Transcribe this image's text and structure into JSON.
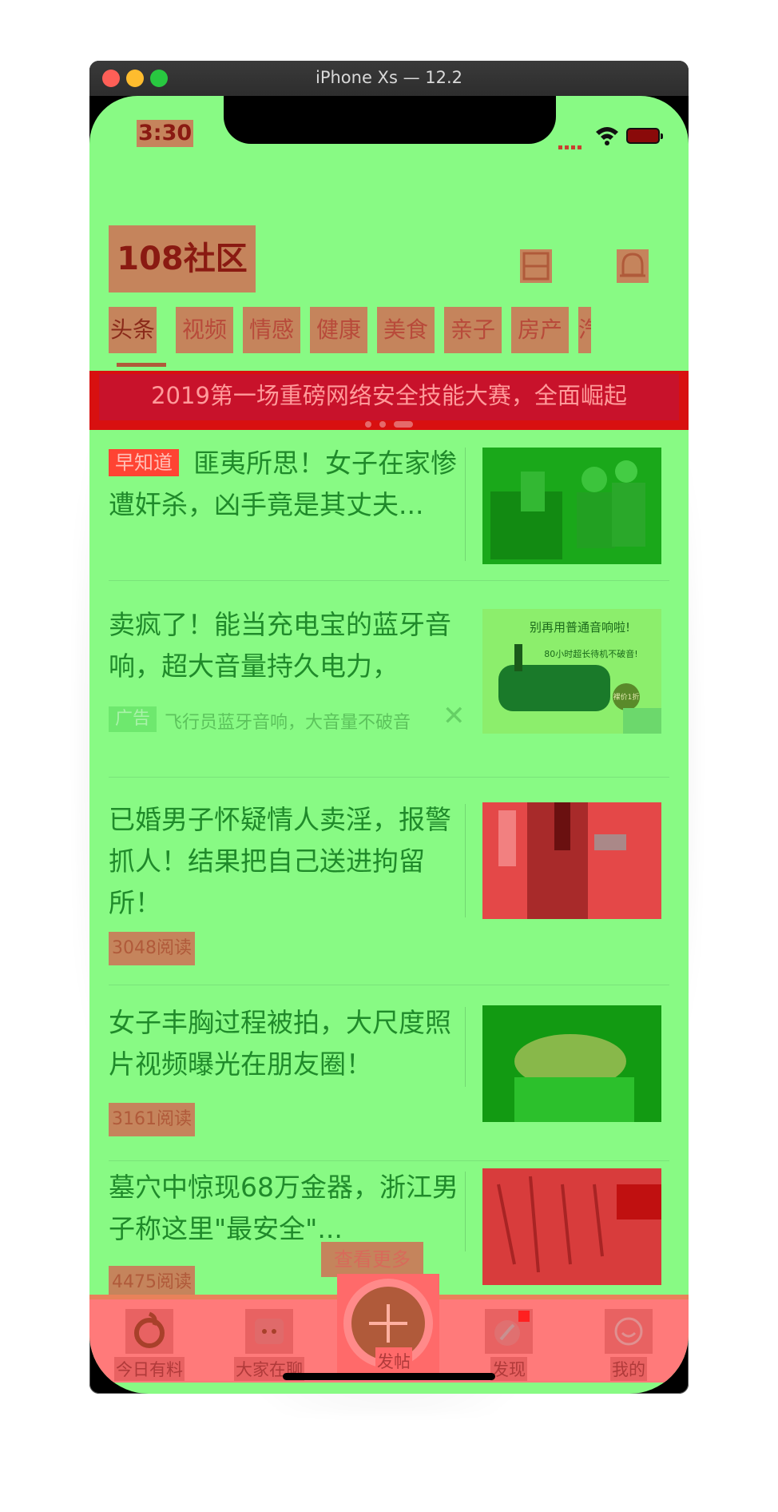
{
  "window": {
    "title": "iPhone Xs — 12.2"
  },
  "status": {
    "time": "3:30"
  },
  "header": {
    "logo": "108社区"
  },
  "categories": [
    "头条",
    "视频",
    "情感",
    "健康",
    "美食",
    "亲子",
    "房产",
    "汽"
  ],
  "banner": {
    "text": "2019第一场重磅网络安全技能大赛，全面崛起"
  },
  "feed": [
    {
      "tag": "早知道",
      "title": "匪夷所思！女子在家惨遭奸杀，凶手竟是其丈夫..."
    },
    {
      "title": "卖疯了！能当充电宝的蓝牙音响，超大音量持久电力，",
      "ad_label": "广告",
      "ad_source": "飞行员蓝牙音响，大音量不破音",
      "ad_image_text": "别再用普通音响啦!",
      "ad_image_sub": "80小时超长待机不破音!",
      "ad_price": "裸价1折"
    },
    {
      "title": "已婚男子怀疑情人卖淫，报警抓人！结果把自己送进拘留所！",
      "reads": "3048阅读"
    },
    {
      "title": "女子丰胸过程被拍，大尺度照片视频曝光在朋友圈！",
      "reads": "3161阅读"
    },
    {
      "title": "墓穴中惊现68万金器，浙江男子称这里\"最安全\"...",
      "reads": "4475阅读"
    }
  ],
  "float_button": "查看更多",
  "tabbar": [
    {
      "label": "今日有料",
      "icon": "refresh-icon"
    },
    {
      "label": "大家在聊",
      "icon": "chat-icon"
    },
    {
      "label": "发帖",
      "icon": "plus-icon"
    },
    {
      "label": "发现",
      "icon": "compass-icon"
    },
    {
      "label": "我的",
      "icon": "profile-icon"
    }
  ],
  "colors": {
    "bg": "#88fa84",
    "banner": "#d81010",
    "tabbar": "#ff7a7a",
    "overlay": "#c5845c"
  }
}
